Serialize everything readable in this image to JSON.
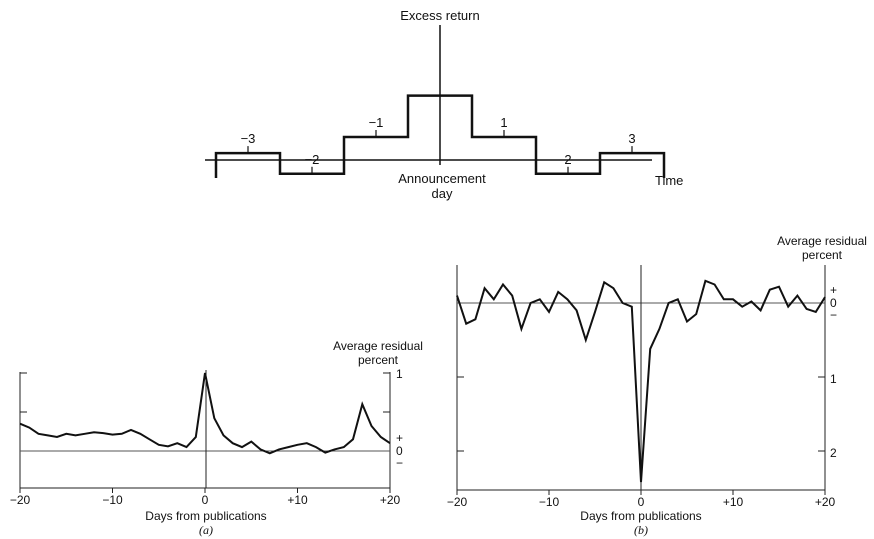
{
  "colors": {
    "ink": "#111111",
    "axis": "#222222",
    "zero_line": "#555555"
  },
  "chart_data": [
    {
      "type": "step",
      "id": "top",
      "title": "Excess return",
      "xlabel": "Time",
      "center_label_line1": "Announcement",
      "center_label_line2": "day",
      "tick_labels": [
        "−3",
        "−2",
        "−1",
        "1",
        "2",
        "3"
      ],
      "steps": [
        {
          "from": -3.5,
          "to": -2.5,
          "value": 0.3
        },
        {
          "from": -2.5,
          "to": -1.5,
          "value": -0.6
        },
        {
          "from": -1.5,
          "to": -0.5,
          "value": 1.0
        },
        {
          "from": -0.5,
          "to": 0.5,
          "value": 2.8
        },
        {
          "from": 0.5,
          "to": 1.5,
          "value": 1.0
        },
        {
          "from": 1.5,
          "to": 2.5,
          "value": -0.6
        },
        {
          "from": 2.5,
          "to": 3.5,
          "value": 0.3
        }
      ]
    },
    {
      "type": "line",
      "id": "a",
      "caption": "(a)",
      "xlabel": "Days from publications",
      "ylabel_line1": "Average residual",
      "ylabel_line2": "percent",
      "x_ticks": [
        "−20",
        "−10",
        "0",
        "+10",
        "+20"
      ],
      "y_tick_labels": {
        "one": "1",
        "plus": "+",
        "zero": "0",
        "minus": "−"
      },
      "xlim": [
        -20,
        20
      ],
      "ylim": [
        -0.3,
        1.0
      ],
      "x": [
        -20,
        -19,
        -18,
        -17,
        -16,
        -15,
        -14,
        -13,
        -12,
        -11,
        -10,
        -9,
        -8,
        -7,
        -6,
        -5,
        -4,
        -3,
        -2,
        -1,
        0,
        1,
        2,
        3,
        4,
        5,
        6,
        7,
        8,
        9,
        10,
        11,
        12,
        13,
        14,
        15,
        16,
        17,
        18,
        19,
        20
      ],
      "values": [
        0.35,
        0.3,
        0.22,
        0.2,
        0.18,
        0.22,
        0.2,
        0.22,
        0.24,
        0.23,
        0.21,
        0.22,
        0.27,
        0.22,
        0.15,
        0.08,
        0.06,
        0.1,
        0.05,
        0.18,
        1.0,
        0.42,
        0.2,
        0.1,
        0.05,
        0.12,
        0.02,
        -0.03,
        0.02,
        0.05,
        0.08,
        0.1,
        0.05,
        -0.02,
        0.02,
        0.05,
        0.15,
        0.6,
        0.32,
        0.18,
        0.1
      ]
    },
    {
      "type": "line",
      "id": "b",
      "caption": "(b)",
      "xlabel": "Days from publications",
      "ylabel_line1": "Average residual",
      "ylabel_line2": "percent",
      "x_ticks": [
        "−20",
        "−10",
        "0",
        "+10",
        "+20"
      ],
      "y_tick_labels": {
        "plus": "+",
        "zero": "0",
        "minus": "−",
        "one": "1",
        "two": "2"
      },
      "xlim": [
        -20,
        20
      ],
      "ylim": [
        -2.4,
        0.3
      ],
      "x": [
        -20,
        -19,
        -18,
        -17,
        -16,
        -15,
        -14,
        -13,
        -12,
        -11,
        -10,
        -9,
        -8,
        -7,
        -6,
        -5,
        -4,
        -3,
        -2,
        -1,
        0,
        1,
        2,
        3,
        4,
        5,
        6,
        7,
        8,
        9,
        10,
        11,
        12,
        13,
        14,
        15,
        16,
        17,
        18,
        19,
        20
      ],
      "values": [
        0.1,
        -0.28,
        -0.22,
        0.2,
        0.05,
        0.25,
        0.1,
        -0.35,
        0.0,
        0.05,
        -0.12,
        0.15,
        0.05,
        -0.1,
        -0.5,
        -0.12,
        0.28,
        0.2,
        0.0,
        -0.05,
        -2.42,
        -0.62,
        -0.35,
        0.0,
        0.05,
        -0.25,
        -0.15,
        0.3,
        0.25,
        0.05,
        0.05,
        -0.05,
        0.02,
        -0.1,
        0.18,
        0.22,
        -0.05,
        0.1,
        -0.08,
        -0.12,
        0.08
      ]
    }
  ]
}
